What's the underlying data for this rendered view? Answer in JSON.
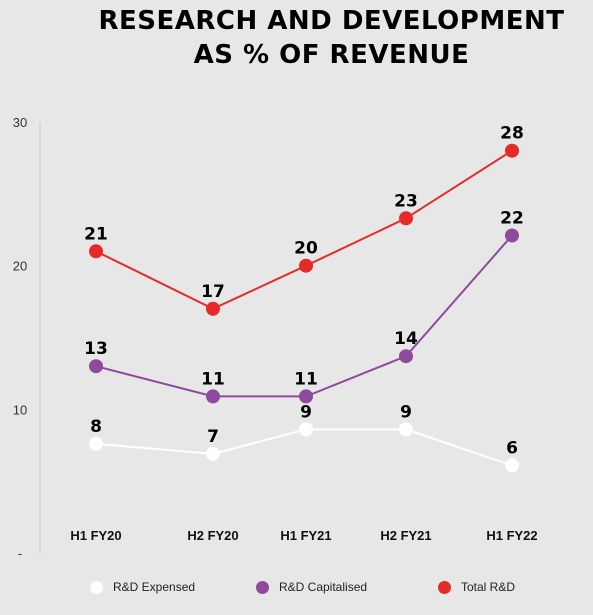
{
  "title_line1": "RESEARCH AND DEVELOPMENT",
  "title_line2": "AS % OF REVENUE",
  "chart_data": {
    "type": "line",
    "categories": [
      "H1 FY20",
      "H2 FY20",
      "H1 FY21",
      "H2 FY21",
      "H1 FY22"
    ],
    "y_ticks": [
      "30",
      "20",
      "10",
      "-"
    ],
    "ylim": [
      0,
      30
    ],
    "grid": false,
    "legend_position": "bottom",
    "series": [
      {
        "name": "R&D Expensed",
        "color": "#ffffff",
        "values": [
          7.6,
          6.9,
          8.6,
          8.6,
          6.1
        ],
        "labels": [
          "8",
          "7",
          "9",
          "9",
          "6"
        ]
      },
      {
        "name": "R&D Capitalised",
        "color": "#8e4a9b",
        "values": [
          13,
          10.9,
          10.9,
          13.7,
          22.1
        ],
        "labels": [
          "13",
          "11",
          "11",
          "14",
          "22"
        ]
      },
      {
        "name": "Total R&D",
        "color": "#e62a2a",
        "values": [
          21,
          17,
          20,
          23.3,
          28
        ],
        "labels": [
          "21",
          "17",
          "20",
          "23",
          "28"
        ]
      }
    ]
  }
}
